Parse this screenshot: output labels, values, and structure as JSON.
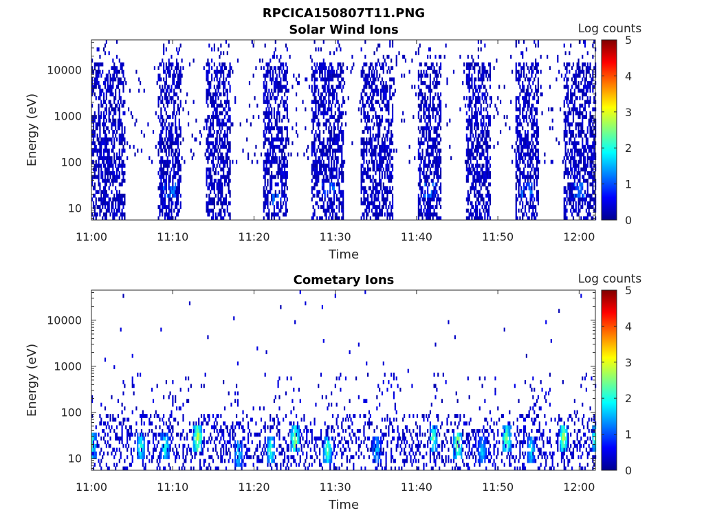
{
  "figure_title": "RPCICA150807T11.PNG",
  "chart_data": [
    {
      "type": "heatmap",
      "title": "Solar Wind Ions",
      "xlabel": "Time",
      "ylabel": "Energy (eV)",
      "y_scale": "log",
      "ylim": [
        5.5,
        45000
      ],
      "xlim": [
        "11:00",
        "12:02"
      ],
      "x_ticks": [
        "11:00",
        "11:10",
        "11:20",
        "11:30",
        "11:40",
        "11:50",
        "12:00"
      ],
      "y_ticks": [
        {
          "value": 10,
          "label": "10"
        },
        {
          "value": 100,
          "label": "100"
        },
        {
          "value": 1000,
          "label": "1000"
        },
        {
          "value": 10000,
          "label": "10000"
        }
      ],
      "colorbar": {
        "label": "Log counts",
        "min": 0,
        "max": 5,
        "ticks": [
          "0",
          "1",
          "2",
          "3",
          "4",
          "5"
        ],
        "colormap": "jet"
      },
      "bursts": [
        {
          "start": "11:00",
          "end": "11:04",
          "emin": 5.5,
          "emax": 30000,
          "hotspot_energy": 0,
          "hotspot_log_counts": 0
        },
        {
          "start": "11:08",
          "end": "11:11",
          "emin": 5.5,
          "emax": 20000,
          "hotspot_energy": 25,
          "hotspot_log_counts": 1.3
        },
        {
          "start": "11:14",
          "end": "11:17",
          "emin": 5.5,
          "emax": 20000,
          "hotspot_energy": 0,
          "hotspot_log_counts": 0
        },
        {
          "start": "11:21",
          "end": "11:24",
          "emin": 5.5,
          "emax": 20000,
          "hotspot_energy": 15,
          "hotspot_log_counts": 1.3
        },
        {
          "start": "11:27",
          "end": "11:31",
          "emin": 5.5,
          "emax": 25000,
          "hotspot_energy": 25,
          "hotspot_log_counts": 1.3
        },
        {
          "start": "11:33",
          "end": "11:37",
          "emin": 5.5,
          "emax": 20000,
          "hotspot_energy": 0,
          "hotspot_log_counts": 0
        },
        {
          "start": "11:40",
          "end": "11:43",
          "emin": 5.5,
          "emax": 20000,
          "hotspot_energy": 25,
          "hotspot_log_counts": 1.3
        },
        {
          "start": "11:46",
          "end": "11:49",
          "emin": 5.5,
          "emax": 15000,
          "hotspot_energy": 0,
          "hotspot_log_counts": 0
        },
        {
          "start": "11:52",
          "end": "11:55",
          "emin": 5.5,
          "emax": 15000,
          "hotspot_energy": 25,
          "hotspot_log_counts": 1.3
        },
        {
          "start": "11:58",
          "end": "12:02",
          "emin": 5.5,
          "emax": 15000,
          "hotspot_energy": 25,
          "hotspot_log_counts": 1.3
        }
      ],
      "grid": false
    },
    {
      "type": "heatmap",
      "title": "Cometary Ions",
      "xlabel": "Time",
      "ylabel": "Energy (eV)",
      "y_scale": "log",
      "ylim": [
        5.5,
        45000
      ],
      "xlim": [
        "11:00",
        "12:02"
      ],
      "x_ticks": [
        "11:00",
        "11:10",
        "11:20",
        "11:30",
        "11:40",
        "11:50",
        "12:00"
      ],
      "y_ticks": [
        {
          "value": 10,
          "label": "10"
        },
        {
          "value": 100,
          "label": "100"
        },
        {
          "value": 1000,
          "label": "1000"
        },
        {
          "value": 10000,
          "label": "10000"
        }
      ],
      "colorbar": {
        "label": "Log counts",
        "min": 0,
        "max": 5,
        "ticks": [
          "0",
          "1",
          "2",
          "3",
          "4",
          "5"
        ],
        "colormap": "jet"
      },
      "bursts": [
        {
          "time": "11:00",
          "energy": 20,
          "log_counts": 2.3
        },
        {
          "time": "11:06",
          "energy": 18,
          "log_counts": 2.3
        },
        {
          "time": "11:09",
          "energy": 18,
          "log_counts": 2.3
        },
        {
          "time": "11:13",
          "energy": 28,
          "log_counts": 3.2
        },
        {
          "time": "11:18",
          "energy": 12,
          "log_counts": 2.0
        },
        {
          "time": "11:22",
          "energy": 15,
          "log_counts": 2.4
        },
        {
          "time": "11:25",
          "energy": 25,
          "log_counts": 3.0
        },
        {
          "time": "11:29",
          "energy": 15,
          "log_counts": 2.5
        },
        {
          "time": "11:35",
          "energy": 15,
          "log_counts": 1.8
        },
        {
          "time": "11:42",
          "energy": 28,
          "log_counts": 2.5
        },
        {
          "time": "11:45",
          "energy": 20,
          "log_counts": 3.0
        },
        {
          "time": "11:48",
          "energy": 15,
          "log_counts": 1.8
        },
        {
          "time": "11:51",
          "energy": 25,
          "log_counts": 2.8
        },
        {
          "time": "11:54",
          "energy": 15,
          "log_counts": 2.0
        },
        {
          "time": "11:58",
          "energy": 28,
          "log_counts": 3.0
        },
        {
          "time": "12:02",
          "energy": 28,
          "log_counts": 2.5
        }
      ],
      "grid": false
    }
  ]
}
